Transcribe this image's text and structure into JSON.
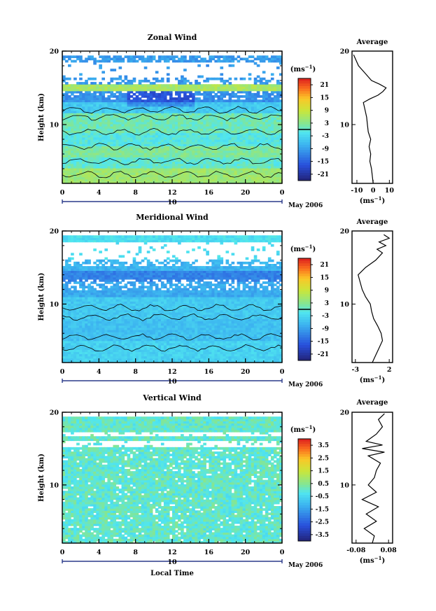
{
  "chart_data": [
    {
      "type": "heatmap",
      "title": "Zonal Wind",
      "ylabel": "Height (km)",
      "xlabel": "",
      "x_ticks": [
        "0",
        "4",
        "8",
        "12",
        "16",
        "20",
        "0"
      ],
      "date_tick": "10",
      "date_label": "May 2006",
      "ylim": [
        2,
        20
      ],
      "y_ticks": [
        "10",
        "20"
      ],
      "colorbar": {
        "unit": "(ms-1)",
        "ticks": [
          "21",
          "15",
          "9",
          "3",
          "-3",
          "-9",
          "-15",
          "-21"
        ],
        "range": [
          -24,
          24
        ],
        "zero_line": 0
      },
      "profile": {
        "title": "Average",
        "x_ticks": [
          "-10",
          "0",
          "10"
        ],
        "xlim": [
          -13,
          12
        ],
        "xlabel": "(ms-1)",
        "y_ticks": [
          "10",
          "20"
        ],
        "heights": [
          2,
          3,
          4,
          5,
          6,
          7,
          8,
          9,
          10,
          11,
          12,
          13,
          13.5,
          14,
          14.5,
          15,
          15.5,
          16,
          17,
          18,
          19,
          19.5
        ],
        "values": [
          0,
          -0.5,
          -1,
          -2,
          -1.5,
          -2.5,
          -1.5,
          -3,
          -3.5,
          -4,
          -5,
          -6,
          -2,
          3,
          6,
          8,
          4,
          -1,
          -5,
          -9,
          -11,
          -12
        ]
      }
    },
    {
      "type": "heatmap",
      "title": "Meridional Wind",
      "ylabel": "Height (km)",
      "xlabel": "",
      "x_ticks": [
        "0",
        "4",
        "8",
        "12",
        "16",
        "20",
        "0"
      ],
      "date_tick": "10",
      "date_label": "May 2006",
      "ylim": [
        2,
        20
      ],
      "y_ticks": [
        "10",
        "20"
      ],
      "colorbar": {
        "unit": "(ms-1)",
        "ticks": [
          "21",
          "15",
          "9",
          "3",
          "-3",
          "-9",
          "-15",
          "-21"
        ],
        "range": [
          -24,
          24
        ],
        "zero_line": 0
      },
      "profile": {
        "title": "Average",
        "x_ticks": [
          "-3",
          "2"
        ],
        "xlim": [
          -3.5,
          2.5
        ],
        "xlabel": "(ms-1)",
        "y_ticks": [
          "10",
          "20"
        ],
        "heights": [
          2,
          3,
          4,
          5,
          6,
          7,
          8,
          9,
          10,
          11,
          12,
          13,
          14,
          15,
          16,
          17,
          17.5,
          18,
          18.5,
          19,
          19.5
        ],
        "values": [
          -0.5,
          0,
          0.5,
          1,
          0.8,
          0.3,
          -0.3,
          -0.6,
          -0.8,
          -1.5,
          -2,
          -2.3,
          -2.6,
          -1.5,
          0,
          1,
          0.2,
          1.5,
          0.5,
          2,
          1.2
        ]
      }
    },
    {
      "type": "heatmap",
      "title": "Vertical Wind",
      "ylabel": "Height (km)",
      "xlabel": "Local Time",
      "x_ticks": [
        "0",
        "4",
        "8",
        "12",
        "16",
        "20",
        "0"
      ],
      "date_tick": "10",
      "date_label": "May 2006",
      "ylim": [
        2,
        20
      ],
      "y_ticks": [
        "10",
        "20"
      ],
      "colorbar": {
        "unit": "(ms-1)",
        "ticks": [
          "3.5",
          "2.5",
          "1.5",
          "0.5",
          "-0.5",
          "-1.5",
          "-2.5",
          "-3.5"
        ],
        "range": [
          -4,
          4
        ],
        "zero_line": null
      },
      "profile": {
        "title": "Average",
        "x_ticks": [
          "-0.08",
          "0.08"
        ],
        "xlim": [
          -0.1,
          0.1
        ],
        "xlabel": "(ms-1)",
        "y_ticks": [
          "10",
          "20"
        ],
        "heights": [
          2,
          3,
          4,
          5,
          6,
          7,
          8,
          9,
          10,
          11,
          12,
          13,
          14,
          14.5,
          15,
          15.5,
          16,
          17,
          18,
          19,
          19.8
        ],
        "values": [
          0,
          0.01,
          -0.04,
          0.02,
          -0.03,
          0.03,
          -0.05,
          0.02,
          -0.02,
          0.01,
          0.02,
          0.04,
          -0.02,
          0.06,
          -0.05,
          0.05,
          -0.03,
          0.02,
          0.05,
          0.03,
          0.06
        ]
      }
    }
  ]
}
